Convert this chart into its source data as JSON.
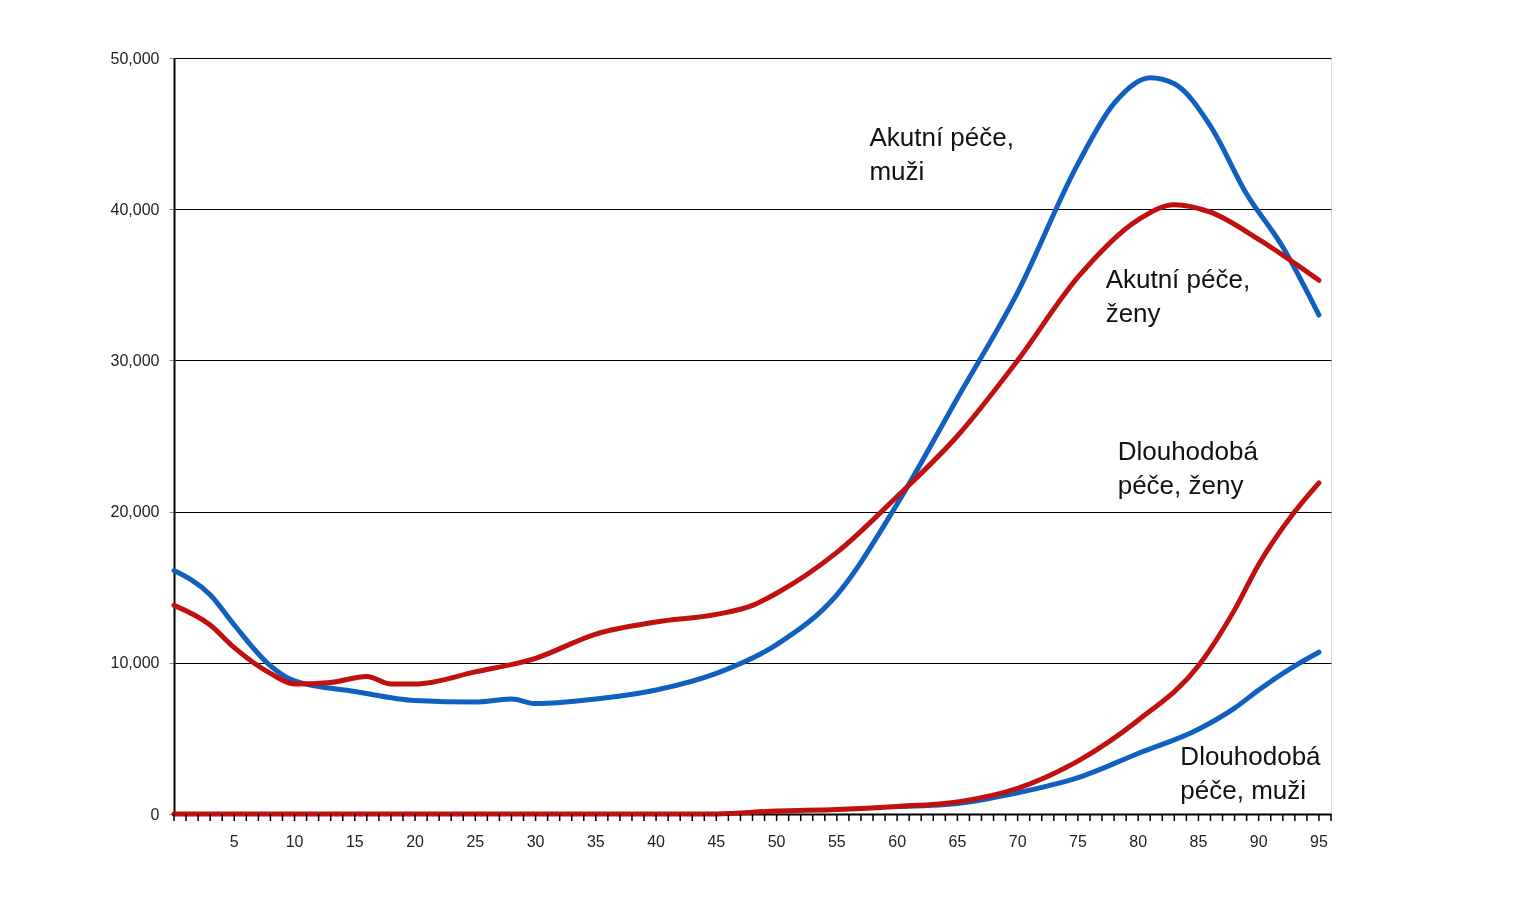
{
  "chart_data": {
    "type": "line",
    "grid": "y",
    "line_style": "solid",
    "marker": "none",
    "xlim": [
      0,
      96
    ],
    "ylim": [
      0,
      50000
    ],
    "yticks": [
      0,
      {
        "value": 10000,
        "label": "10,000"
      },
      {
        "value": 20000,
        "label": "20,000"
      },
      {
        "value": 30000,
        "label": "30,000"
      },
      {
        "value": 40000,
        "label": "40,000"
      },
      {
        "value": 50000,
        "label": "50,000"
      }
    ],
    "xticks": [
      {
        "value": 0,
        "label": null
      },
      {
        "value": 1,
        "label": null
      },
      {
        "value": 2,
        "label": null
      },
      {
        "value": 3,
        "label": null
      },
      {
        "value": 4,
        "label": null
      },
      5,
      {
        "value": 6,
        "label": null
      },
      {
        "value": 7,
        "label": null
      },
      {
        "value": 8,
        "label": null
      },
      {
        "value": 9,
        "label": null
      },
      10,
      {
        "value": 11,
        "label": null
      },
      {
        "value": 12,
        "label": null
      },
      {
        "value": 13,
        "label": null
      },
      {
        "value": 14,
        "label": null
      },
      15,
      {
        "value": 16,
        "label": null
      },
      {
        "value": 17,
        "label": null
      },
      {
        "value": 18,
        "label": null
      },
      {
        "value": 19,
        "label": null
      },
      20,
      {
        "value": 21,
        "label": null
      },
      {
        "value": 22,
        "label": null
      },
      {
        "value": 23,
        "label": null
      },
      {
        "value": 24,
        "label": null
      },
      25,
      {
        "value": 26,
        "label": null
      },
      {
        "value": 27,
        "label": null
      },
      {
        "value": 28,
        "label": null
      },
      {
        "value": 29,
        "label": null
      },
      30,
      {
        "value": 31,
        "label": null
      },
      {
        "value": 32,
        "label": null
      },
      {
        "value": 33,
        "label": null
      },
      {
        "value": 34,
        "label": null
      },
      35,
      {
        "value": 36,
        "label": null
      },
      {
        "value": 37,
        "label": null
      },
      {
        "value": 38,
        "label": null
      },
      {
        "value": 39,
        "label": null
      },
      40,
      {
        "value": 41,
        "label": null
      },
      {
        "value": 42,
        "label": null
      },
      {
        "value": 43,
        "label": null
      },
      {
        "value": 44,
        "label": null
      },
      45,
      {
        "value": 46,
        "label": null
      },
      {
        "value": 47,
        "label": null
      },
      {
        "value": 48,
        "label": null
      },
      {
        "value": 49,
        "label": null
      },
      50,
      {
        "value": 51,
        "label": null
      },
      {
        "value": 52,
        "label": null
      },
      {
        "value": 53,
        "label": null
      },
      {
        "value": 54,
        "label": null
      },
      55,
      {
        "value": 56,
        "label": null
      },
      {
        "value": 57,
        "label": null
      },
      {
        "value": 58,
        "label": null
      },
      {
        "value": 59,
        "label": null
      },
      60,
      {
        "value": 61,
        "label": null
      },
      {
        "value": 62,
        "label": null
      },
      {
        "value": 63,
        "label": null
      },
      {
        "value": 64,
        "label": null
      },
      65,
      {
        "value": 66,
        "label": null
      },
      {
        "value": 67,
        "label": null
      },
      {
        "value": 68,
        "label": null
      },
      {
        "value": 69,
        "label": null
      },
      70,
      {
        "value": 71,
        "label": null
      },
      {
        "value": 72,
        "label": null
      },
      {
        "value": 73,
        "label": null
      },
      {
        "value": 74,
        "label": null
      },
      75,
      {
        "value": 76,
        "label": null
      },
      {
        "value": 77,
        "label": null
      },
      {
        "value": 78,
        "label": null
      },
      {
        "value": 79,
        "label": null
      },
      80,
      {
        "value": 81,
        "label": null
      },
      {
        "value": 82,
        "label": null
      },
      {
        "value": 83,
        "label": null
      },
      {
        "value": 84,
        "label": null
      },
      85,
      {
        "value": 86,
        "label": null
      },
      {
        "value": 87,
        "label": null
      },
      {
        "value": 88,
        "label": null
      },
      {
        "value": 89,
        "label": null
      },
      90,
      {
        "value": 91,
        "label": null
      },
      {
        "value": 92,
        "label": null
      },
      {
        "value": 93,
        "label": null
      },
      {
        "value": 94,
        "label": null
      },
      95,
      {
        "value": 96,
        "label": null
      }
    ],
    "series": [
      {
        "name": "Akutní péče, muži",
        "color": "#1060c0",
        "x": [
          0,
          3,
          5,
          8,
          10,
          15,
          20,
          25,
          28,
          30,
          35,
          40,
          45,
          50,
          55,
          60,
          65,
          70,
          75,
          78,
          81,
          83,
          86,
          89,
          92,
          95
        ],
        "values": [
          16100,
          14500,
          12500,
          9800,
          8800,
          8100,
          7500,
          7400,
          7600,
          7300,
          7600,
          8200,
          9300,
          11200,
          14500,
          20500,
          27500,
          34500,
          43000,
          47000,
          48700,
          48300,
          45500,
          41000,
          37500,
          33000
        ]
      },
      {
        "name": "Akutní péče, ženy",
        "color": "#c01010",
        "x": [
          0,
          3,
          5,
          8,
          10,
          13,
          16,
          18,
          20,
          25,
          30,
          35,
          40,
          45,
          48,
          50,
          55,
          60,
          65,
          70,
          75,
          80,
          83,
          86,
          90,
          95
        ],
        "values": [
          13800,
          12500,
          11000,
          9300,
          8600,
          8700,
          9100,
          8600,
          8600,
          9400,
          10300,
          11900,
          12700,
          13200,
          13800,
          14600,
          17300,
          21000,
          25000,
          30000,
          35500,
          39300,
          40300,
          39800,
          38000,
          35300
        ]
      },
      {
        "name": "Dlouhodobá péče, muži",
        "color": "#1060c0",
        "x": [
          60,
          65,
          70,
          75,
          80,
          85,
          88,
          90,
          93,
          95
        ],
        "values": [
          500,
          700,
          1400,
          2400,
          4000,
          5600,
          7000,
          8200,
          9800,
          10700
        ]
      },
      {
        "name": "Dlouhodobá péče, ženy",
        "color": "#c01010",
        "x": [
          0,
          45,
          50,
          55,
          60,
          65,
          70,
          75,
          80,
          85,
          88,
          90,
          93,
          95
        ],
        "values": [
          0,
          0,
          200,
          300,
          500,
          800,
          1700,
          3500,
          6200,
          9800,
          13500,
          16500,
          20000,
          21900
        ]
      }
    ]
  }
}
